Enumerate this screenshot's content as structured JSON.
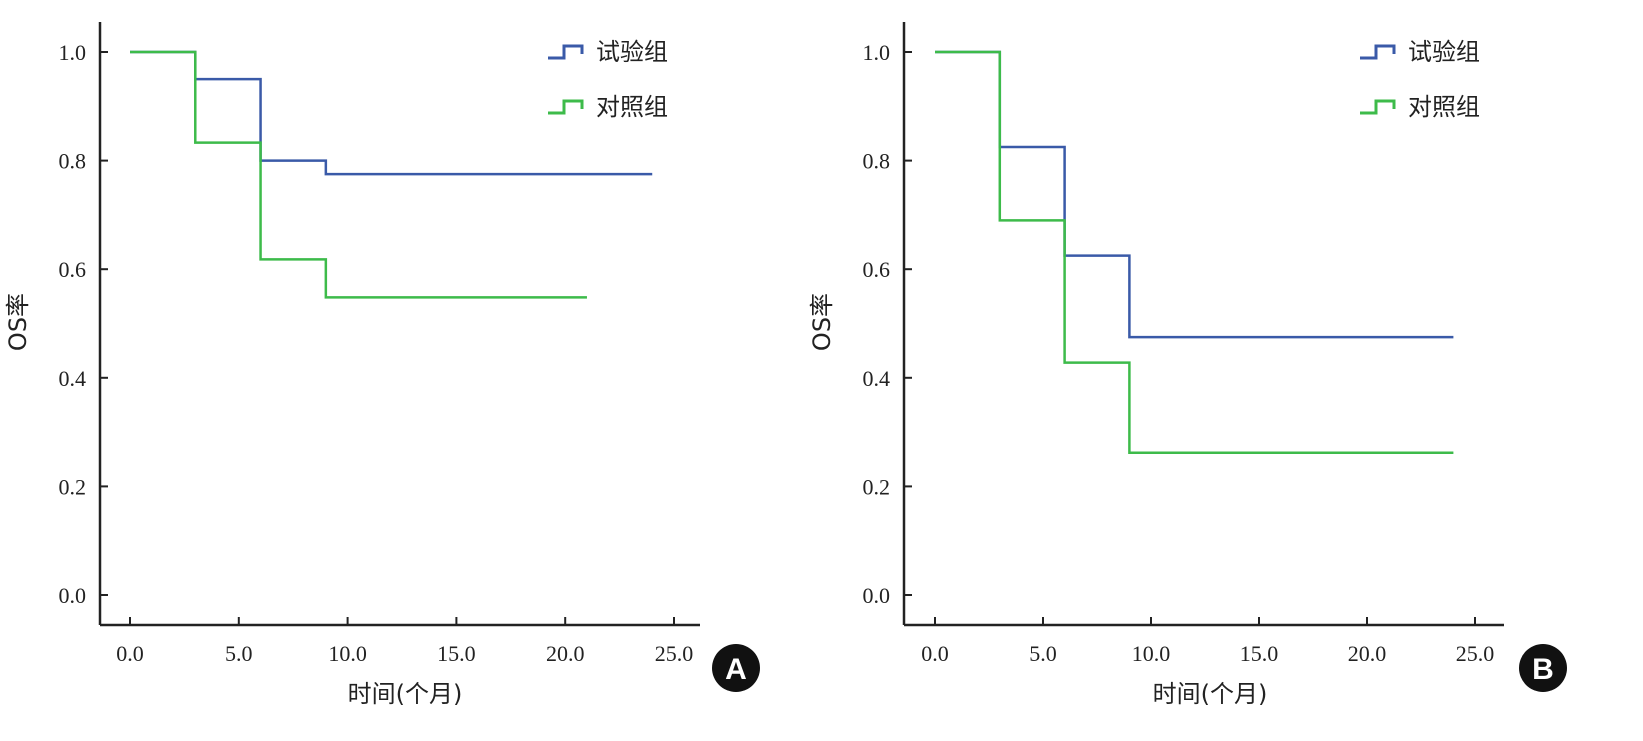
{
  "colors": {
    "trial": "#3a5aa8",
    "control": "#3dbb4a",
    "axis": "#222222",
    "badge": "#111111"
  },
  "chart_data": [
    {
      "type": "line",
      "panel": "A",
      "xlabel": "时间(个月)",
      "ylabel": "OS率",
      "xlim": [
        0,
        25
      ],
      "ylim": [
        0,
        1
      ],
      "x_ticks": [
        "0.0",
        "5.0",
        "10.0",
        "15.0",
        "20.0",
        "25.0"
      ],
      "y_ticks": [
        "0.0",
        "0.2",
        "0.4",
        "0.6",
        "0.8",
        "1.0"
      ],
      "legend_position": "top-right",
      "series": [
        {
          "name": "试验组",
          "color_key": "trial",
          "x": [
            0,
            3,
            6,
            9,
            24
          ],
          "y": [
            1.0,
            0.95,
            0.8,
            0.775,
            0.775
          ]
        },
        {
          "name": "对照组",
          "color_key": "control",
          "x": [
            0,
            3,
            6,
            9,
            21
          ],
          "y": [
            1.0,
            0.833,
            0.618,
            0.548,
            0.548
          ]
        }
      ]
    },
    {
      "type": "line",
      "panel": "B",
      "xlabel": "时间(个月)",
      "ylabel": "OS率",
      "xlim": [
        0,
        25
      ],
      "ylim": [
        0,
        1
      ],
      "x_ticks": [
        "0.0",
        "5.0",
        "10.0",
        "15.0",
        "20.0",
        "25.0"
      ],
      "y_ticks": [
        "0.0",
        "0.2",
        "0.4",
        "0.6",
        "0.8",
        "1.0"
      ],
      "legend_position": "top-right",
      "series": [
        {
          "name": "试验组",
          "color_key": "trial",
          "x": [
            0,
            3,
            6,
            9,
            24
          ],
          "y": [
            1.0,
            0.825,
            0.625,
            0.475,
            0.475
          ]
        },
        {
          "name": "对照组",
          "color_key": "control",
          "x": [
            0,
            3,
            6,
            9,
            24
          ],
          "y": [
            1.0,
            0.69,
            0.428,
            0.262,
            0.262
          ]
        }
      ]
    }
  ]
}
